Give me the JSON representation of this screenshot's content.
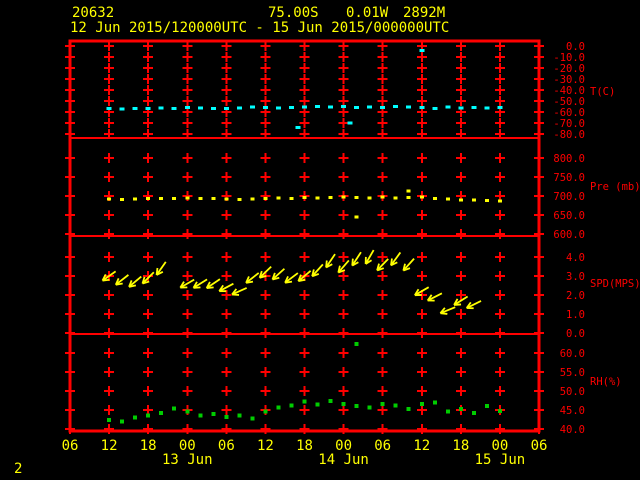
{
  "header": {
    "station_id": "20632",
    "latitude": "75.00S",
    "longitude": "0.01W",
    "elevation": "2892M",
    "period": "12 Jun 2015/120000UTC - 15 Jun 2015/000000UTC"
  },
  "footer": {
    "page_number": "2"
  },
  "colors": {
    "background": "#000000",
    "frame": "#FF0000",
    "grid": "#FF0000",
    "axis_text": "#FF0000",
    "time_text": "#FFFF00",
    "title_text": "#FFFF00",
    "temp": "#00FFFF",
    "pressure": "#FFFF00",
    "wind": "#FFFF00",
    "rh": "#00CD00"
  },
  "chart_data": {
    "type": "scatter",
    "title": "20632  75.00S  0.01W  2892M",
    "subtitle": "12 Jun 2015/120000UTC - 15 Jun 2015/000000UTC",
    "x_axis": {
      "unit": "hours from 12 Jun 2015 06:00 UTC",
      "range_hours": [
        0,
        72
      ],
      "tick_interval_hours": 6,
      "tick_labels": [
        "06",
        "12",
        "18",
        "00",
        "06",
        "12",
        "18",
        "00",
        "06",
        "12",
        "18",
        "00",
        "06"
      ],
      "dates": [
        {
          "label": "13 Jun",
          "tick_index": 3
        },
        {
          "label": "14 Jun",
          "tick_index": 7
        },
        {
          "label": "15 Jun",
          "tick_index": 11
        }
      ],
      "grid": true
    },
    "panels": [
      {
        "id": "temp",
        "kind": "scatter",
        "label": "T(C)",
        "ticks": [
          0,
          -10,
          -20,
          -30,
          -40,
          -50,
          -60,
          -70,
          -80
        ],
        "tick_labels": [
          "0.0",
          "-10.0",
          "-20.0",
          "-30.0",
          "-40.0",
          "-50.0",
          "-60.0",
          "-70.0",
          "-80.0"
        ],
        "points": [
          [
            6,
            -57.0
          ],
          [
            8,
            -57.3
          ],
          [
            10,
            -57.0
          ],
          [
            12,
            -56.6
          ],
          [
            14,
            -56.2
          ],
          [
            16,
            -56.8
          ],
          [
            18,
            -55.8
          ],
          [
            20,
            -56.2
          ],
          [
            22,
            -56.6
          ],
          [
            24,
            -57.0
          ],
          [
            26,
            -56.4
          ],
          [
            28,
            -55.4
          ],
          [
            30,
            -55.9
          ],
          [
            32,
            -56.3
          ],
          [
            34,
            -55.9
          ],
          [
            35,
            -74.0
          ],
          [
            36,
            -55.3
          ],
          [
            38,
            -55.0
          ],
          [
            40,
            -55.5
          ],
          [
            42,
            -55.1
          ],
          [
            43,
            -70.0
          ],
          [
            44,
            -55.9
          ],
          [
            46,
            -55.4
          ],
          [
            48,
            -55.8
          ],
          [
            50,
            -55.2
          ],
          [
            52,
            -55.6
          ],
          [
            54,
            -4.0
          ],
          [
            54,
            -56.0
          ],
          [
            56,
            -57.0
          ],
          [
            58,
            -55.6
          ],
          [
            60,
            -56.4
          ],
          [
            62,
            -55.8
          ],
          [
            64,
            -56.2
          ],
          [
            66,
            -55.7
          ]
        ]
      },
      {
        "id": "pressure",
        "kind": "scatter",
        "label": "Pre (mb)",
        "ticks": [
          800,
          750,
          700,
          650,
          600
        ],
        "tick_labels": [
          "800.0",
          "750.0",
          "700.0",
          "650.0",
          "600.0"
        ],
        "points": [
          [
            6,
            692
          ],
          [
            8,
            691
          ],
          [
            10,
            692
          ],
          [
            12,
            693
          ],
          [
            14,
            694
          ],
          [
            16,
            693
          ],
          [
            18,
            695
          ],
          [
            20,
            694
          ],
          [
            22,
            693
          ],
          [
            24,
            692
          ],
          [
            26,
            691
          ],
          [
            28,
            692
          ],
          [
            30,
            694
          ],
          [
            32,
            695
          ],
          [
            34,
            694
          ],
          [
            36,
            696
          ],
          [
            38,
            695
          ],
          [
            40,
            696
          ],
          [
            42,
            697
          ],
          [
            44,
            696
          ],
          [
            44,
            645
          ],
          [
            46,
            695
          ],
          [
            48,
            697
          ],
          [
            50,
            695
          ],
          [
            52,
            713
          ],
          [
            52,
            696
          ],
          [
            54,
            697
          ],
          [
            56,
            693
          ],
          [
            58,
            692
          ],
          [
            60,
            690
          ],
          [
            62,
            689
          ],
          [
            64,
            688
          ],
          [
            66,
            687
          ]
        ]
      },
      {
        "id": "wind",
        "kind": "wind-vectors",
        "label": "SPD(MPS)",
        "ticks": [
          4,
          3,
          2,
          1,
          0
        ],
        "tick_labels": [
          "4.0",
          "3.0",
          "2.0",
          "1.0",
          "0.0"
        ],
        "arrows": [
          [
            6,
            3.0,
            235
          ],
          [
            8,
            2.8,
            232
          ],
          [
            10,
            2.7,
            230
          ],
          [
            12,
            2.9,
            225
          ],
          [
            14,
            3.4,
            215
          ],
          [
            18,
            2.6,
            240
          ],
          [
            20,
            2.6,
            238
          ],
          [
            22,
            2.6,
            236
          ],
          [
            24,
            2.4,
            242
          ],
          [
            26,
            2.2,
            246
          ],
          [
            28,
            2.9,
            232
          ],
          [
            30,
            3.2,
            226
          ],
          [
            32,
            3.1,
            228
          ],
          [
            34,
            2.9,
            233
          ],
          [
            36,
            3.0,
            230
          ],
          [
            38,
            3.3,
            222
          ],
          [
            40,
            3.8,
            214
          ],
          [
            42,
            3.5,
            221
          ],
          [
            44,
            3.9,
            213
          ],
          [
            46,
            4.0,
            210
          ],
          [
            48,
            3.6,
            224
          ],
          [
            50,
            3.9,
            216
          ],
          [
            52,
            3.6,
            222
          ],
          [
            54,
            2.2,
            240
          ],
          [
            56,
            1.9,
            243
          ],
          [
            58,
            1.2,
            248
          ],
          [
            60,
            1.7,
            238
          ],
          [
            62,
            1.5,
            244
          ]
        ]
      },
      {
        "id": "rh",
        "kind": "scatter",
        "label": "RH(%)",
        "ticks": [
          60,
          55,
          50,
          45,
          40
        ],
        "tick_labels": [
          "60.0",
          "55.0",
          "50.0",
          "45.0",
          "40.0"
        ],
        "points": [
          [
            6,
            42.4
          ],
          [
            8,
            42.0
          ],
          [
            10,
            43.0
          ],
          [
            12,
            43.6
          ],
          [
            14,
            44.2
          ],
          [
            16,
            45.4
          ],
          [
            18,
            44.6
          ],
          [
            20,
            43.6
          ],
          [
            22,
            44.0
          ],
          [
            24,
            43.2
          ],
          [
            26,
            43.6
          ],
          [
            28,
            42.8
          ],
          [
            30,
            44.6
          ],
          [
            32,
            45.6
          ],
          [
            34,
            46.2
          ],
          [
            36,
            47.2
          ],
          [
            38,
            46.4
          ],
          [
            40,
            47.4
          ],
          [
            42,
            46.6
          ],
          [
            44,
            62.4
          ],
          [
            44,
            46.0
          ],
          [
            46,
            45.6
          ],
          [
            48,
            46.6
          ],
          [
            50,
            46.2
          ],
          [
            52,
            45.2
          ],
          [
            54,
            46.6
          ],
          [
            56,
            47.0
          ],
          [
            58,
            44.6
          ],
          [
            60,
            45.2
          ],
          [
            62,
            44.2
          ],
          [
            64,
            46.0
          ],
          [
            66,
            44.8
          ]
        ]
      }
    ]
  }
}
